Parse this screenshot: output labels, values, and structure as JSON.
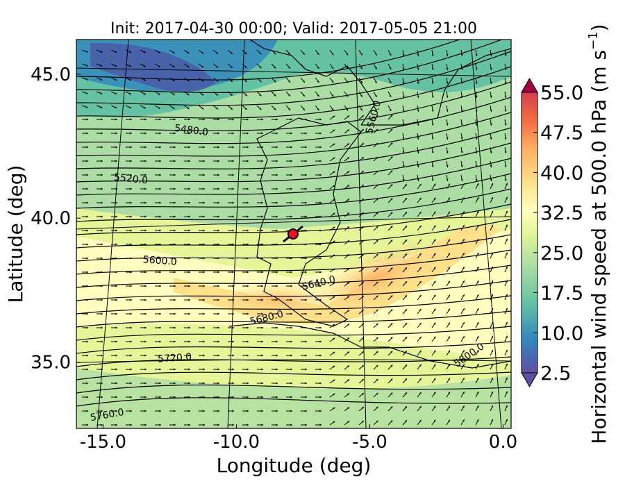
{
  "title": "Init: 2017-04-30 00:00; Valid: 2017-05-05 21:00",
  "xlabel": "Longitude (deg)",
  "ylabel": "Latitude (deg)",
  "colorbar_label": "Horizontal wind speed at 500.0 hPa (m s",
  "colorbar_unit_exponent": "−1",
  "colorbar_label_close": ")",
  "x_ticks": [
    {
      "value": -15,
      "label": "-15.0"
    },
    {
      "value": -10,
      "label": "-10.0"
    },
    {
      "value": -5,
      "label": "-5.0"
    },
    {
      "value": 0,
      "label": "0.0"
    }
  ],
  "y_ticks": [
    {
      "value": 35,
      "label": "35.0"
    },
    {
      "value": 40,
      "label": "40.0"
    },
    {
      "value": 45,
      "label": "45.0"
    }
  ],
  "contour_labels": [
    "5480.0",
    "5520.0",
    "5560.0",
    "5600.0",
    "5640.0",
    "5680.0",
    "5720.0",
    "5760.0",
    "5800.0"
  ],
  "marker": {
    "name": "point-of-interest",
    "lon": -7.6,
    "lat": 39.3,
    "color": "#e8141b"
  },
  "chart_data": {
    "type": "heatmap",
    "title": "Init: 2017-04-30 00:00; Valid: 2017-05-05 21:00",
    "xlabel": "Longitude (deg)",
    "ylabel": "Latitude (deg)",
    "xlim": [
      -16,
      0.3
    ],
    "ylim": [
      32.7,
      46.2
    ],
    "field": "horizontal wind speed at 500 hPa",
    "overlays": [
      "geopotential height contours",
      "wind vectors",
      "coastlines",
      "meridians/parallels"
    ],
    "colorbar": {
      "label": "Horizontal wind speed at 500.0 hPa (m s−1)",
      "range": [
        2.5,
        55.0
      ],
      "tick_labels": [
        "55.0",
        "47.5",
        "40.0",
        "32.5",
        "25.0",
        "17.5",
        "10.0",
        "2.5"
      ],
      "tick_values": [
        55.0,
        47.5,
        40.0,
        32.5,
        25.0,
        17.5,
        10.0,
        2.5
      ],
      "extend": "both",
      "colormap": "Spectral_r"
    },
    "contour_levels": [
      5480,
      5520,
      5560,
      5600,
      5640,
      5680,
      5720,
      5760,
      5800
    ]
  },
  "colors": {
    "low": "#5e4fa2",
    "mid": "#ffffbf",
    "high": "#9e0142"
  }
}
